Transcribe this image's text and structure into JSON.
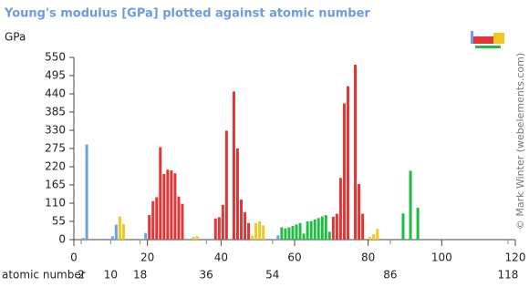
{
  "chart_data": {
    "type": "bar",
    "title": "Young's modulus [GPa] plotted against atomic number",
    "y_label": "GPa",
    "x_label": "atomic number",
    "credit": "© Mark Winter (webelements.com)",
    "xlim": [
      0,
      120
    ],
    "xticks": [
      0,
      20,
      40,
      60,
      80,
      100,
      120
    ],
    "period_ticks": [
      2,
      10,
      18,
      36,
      54,
      86,
      118
    ],
    "ylim": [
      0,
      550
    ],
    "yticks": [
      0,
      55,
      110,
      165,
      220,
      275,
      330,
      385,
      440,
      495,
      550
    ],
    "series": [
      {
        "color": "#6f9ef0",
        "x": [
          3,
          4,
          11,
          12,
          20,
          37,
          55,
          56
        ],
        "values": [
          4.9,
          287,
          10,
          45,
          20,
          2.4,
          1.7,
          13
        ]
      },
      {
        "color": "#efc920",
        "x": [
          13,
          14,
          33,
          34,
          49,
          50,
          51,
          52,
          81,
          82,
          83
        ],
        "values": [
          70,
          47,
          8,
          10,
          11,
          50,
          55,
          43,
          8,
          16,
          32
        ]
      },
      {
        "color": "#e23535",
        "x": [
          21,
          22,
          23,
          24,
          25,
          26,
          27,
          28,
          29,
          30,
          39,
          40,
          41,
          42,
          44,
          45,
          46,
          47,
          48,
          71,
          72,
          73,
          74,
          75,
          77,
          78,
          79
        ],
        "values": [
          74,
          116,
          128,
          279,
          198,
          211,
          209,
          200,
          130,
          108,
          64,
          68,
          105,
          329,
          447,
          275,
          121,
          83,
          50,
          69,
          78,
          186,
          411,
          463,
          528,
          168,
          78
        ]
      },
      {
        "color": "#22bb44",
        "x": [
          57,
          58,
          59,
          60,
          61,
          62,
          63,
          64,
          65,
          66,
          67,
          68,
          69,
          70,
          90,
          92,
          94
        ],
        "values": [
          37,
          34,
          37,
          41,
          46,
          50,
          18,
          55,
          56,
          61,
          65,
          70,
          74,
          24,
          79,
          208,
          96
        ]
      }
    ]
  }
}
